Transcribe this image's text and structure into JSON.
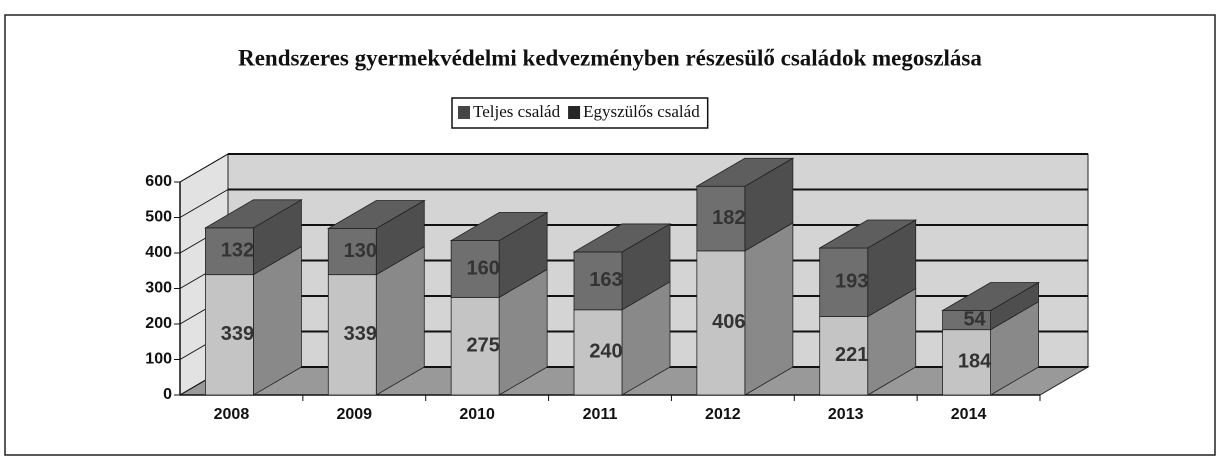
{
  "chart_data": {
    "type": "bar3d_stacked",
    "title": "Rendszeres gyermekvédelmi kedvezményben részesülő családok megoszlása",
    "categories": [
      "2008",
      "2009",
      "2010",
      "2011",
      "2012",
      "2013",
      "2014"
    ],
    "series": [
      {
        "name": "Teljes család",
        "color": "#c4c4c4",
        "values": [
          339,
          339,
          275,
          240,
          406,
          221,
          184
        ]
      },
      {
        "name": "Egyszülős család",
        "color": "#6f6f6f",
        "values": [
          132,
          130,
          160,
          163,
          182,
          193,
          54
        ]
      }
    ],
    "ylim": [
      0,
      600
    ],
    "yticks": [
      0,
      100,
      200,
      300,
      400,
      500,
      600
    ],
    "grid": true,
    "legend": "top"
  }
}
